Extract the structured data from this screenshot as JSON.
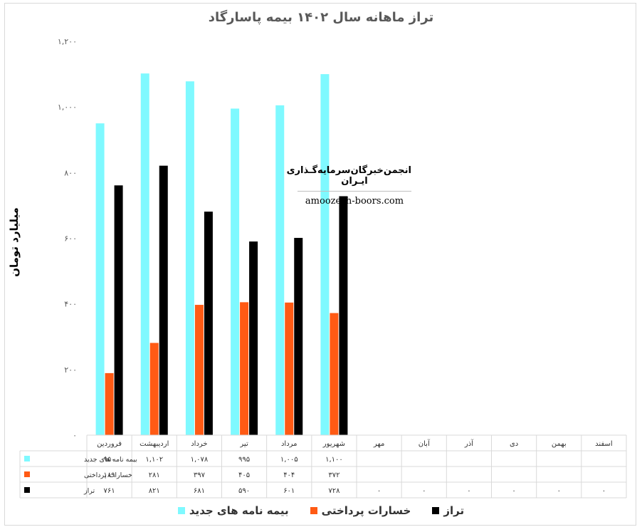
{
  "chart_data": {
    "type": "bar",
    "title": "تراز ماهانه سال ۱۴۰۲ بیمه پاسارگاد",
    "ylabel": "میلیارد تومان",
    "ylim": [
      0,
      1200
    ],
    "yticks": [
      "۰",
      "۲۰۰",
      "۴۰۰",
      "۶۰۰",
      "۸۰۰",
      "۱,۰۰۰",
      "۱,۲۰۰"
    ],
    "ytick_values": [
      0,
      200,
      400,
      600,
      800,
      1000,
      1200
    ],
    "categories": [
      "فروردین",
      "اردیبهشت",
      "خرداد",
      "تیر",
      "مرداد",
      "شهریور",
      "مهر",
      "آبان",
      "آذر",
      "دی",
      "بهمن",
      "اسفند"
    ],
    "series": [
      {
        "name": "بیمه نامه های جدید",
        "color": "#7ff9ff",
        "values": [
          950,
          1102,
          1078,
          995,
          1005,
          1100,
          null,
          null,
          null,
          null,
          null,
          null
        ],
        "labels": [
          "۹۵۰",
          "۱,۱۰۲",
          "۱,۰۷۸",
          "۹۹۵",
          "۱,۰۰۵",
          "۱,۱۰۰",
          "",
          "",
          "",
          "",
          "",
          ""
        ]
      },
      {
        "name": "خسارات پرداختی",
        "color": "#ff5a14",
        "values": [
          189,
          281,
          397,
          405,
          404,
          372,
          null,
          null,
          null,
          null,
          null,
          null
        ],
        "labels": [
          "۱۸۹",
          "۲۸۱",
          "۳۹۷",
          "۴۰۵",
          "۴۰۴",
          "۳۷۲",
          "",
          "",
          "",
          "",
          "",
          ""
        ]
      },
      {
        "name": "تراز",
        "color": "#000000",
        "values": [
          761,
          821,
          681,
          590,
          601,
          728,
          0,
          0,
          0,
          0,
          0,
          0
        ],
        "labels": [
          "۷۶۱",
          "۸۲۱",
          "۶۸۱",
          "۵۹۰",
          "۶۰۱",
          "۷۲۸",
          "۰",
          "۰",
          "۰",
          "۰",
          "۰",
          "۰"
        ]
      }
    ],
    "grid": false,
    "legend": "bottom",
    "data_table": true
  },
  "watermark": {
    "fa": "انجمن‌خبرگان‌سرمایه‌گـذاری ایـران",
    "en": "amoozesh-boors.com"
  }
}
